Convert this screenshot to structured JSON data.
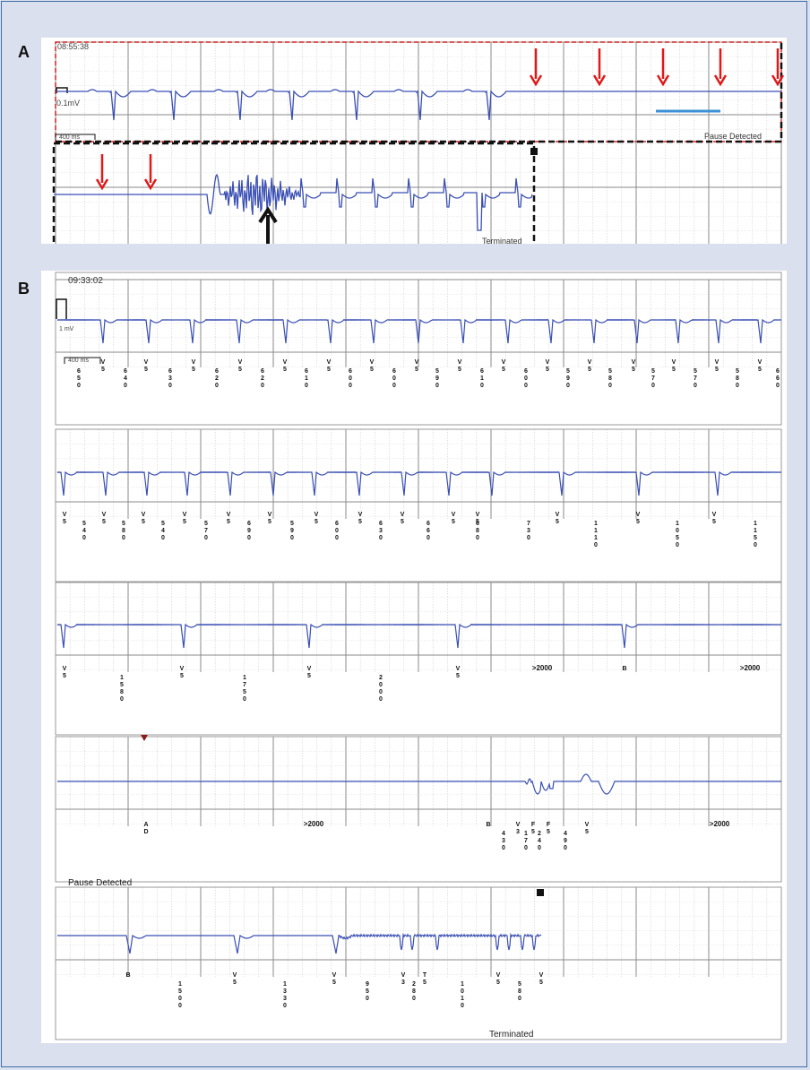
{
  "panel_a": {
    "label": "A",
    "timestamp": "08:55:38",
    "calibration": "0.1mV",
    "scale": "400 ms",
    "pause_text": "Pause Detected",
    "terminated_text": "Terminated",
    "colors": {
      "trace": "#3a4fb4",
      "grid_major": "#7f7f7f",
      "grid_minor": "#c4c4c4",
      "red_box": "#d42020",
      "arrow_red": "#e01818",
      "blue_bar": "#3b8fd6"
    }
  },
  "panel_b": {
    "label": "B",
    "timestamp": "09:33:02",
    "calibration": "1 mV",
    "scale": "400 ms",
    "rows": [
      {
        "markers": [
          {
            "t": "V\n5",
            "x": 115
          },
          {
            "t": "6\n5\n0",
            "x": 88
          },
          {
            "t": "V\n5",
            "x": 163
          },
          {
            "t": "6\n4\n0",
            "x": 140
          },
          {
            "t": "V\n5",
            "x": 216
          },
          {
            "t": "6\n3\n0",
            "x": 190
          },
          {
            "t": "V\n5",
            "x": 268
          },
          {
            "t": "6\n2\n0",
            "x": 242
          },
          {
            "t": "V\n5",
            "x": 318
          },
          {
            "t": "6\n2\n0",
            "x": 293
          },
          {
            "t": "V\n5",
            "x": 367
          },
          {
            "t": "6\n1\n0",
            "x": 342
          },
          {
            "t": "V\n5",
            "x": 415
          },
          {
            "t": "6\n0\n0",
            "x": 391
          },
          {
            "t": "V\n5",
            "x": 465
          },
          {
            "t": "6\n0\n0",
            "x": 440
          },
          {
            "t": "V\n5",
            "x": 513
          },
          {
            "t": "5\n9\n0",
            "x": 488
          },
          {
            "t": "V\n5",
            "x": 562
          },
          {
            "t": "6\n1\n0",
            "x": 538
          },
          {
            "t": "V\n5",
            "x": 611
          },
          {
            "t": "6\n0\n0",
            "x": 587
          },
          {
            "t": "V\n5",
            "x": 658
          },
          {
            "t": "5\n9\n0",
            "x": 634
          },
          {
            "t": "V\n5",
            "x": 707
          },
          {
            "t": "5\n8\n0",
            "x": 681
          },
          {
            "t": "V\n5",
            "x": 752
          },
          {
            "t": "5\n7\n0",
            "x": 729
          },
          {
            "t": "V\n5",
            "x": 800
          },
          {
            "t": "5\n7\n0",
            "x": 776
          },
          {
            "t": "V\n5",
            "x": 848
          },
          {
            "t": "5\n8\n0",
            "x": 823
          },
          {
            "t": "6\n6\n0",
            "x": 868
          }
        ]
      },
      {
        "markers": [
          {
            "t": "V\n5",
            "x": 72
          },
          {
            "t": "V\n5",
            "x": 116
          },
          {
            "t": "5\n4\n0",
            "x": 94
          },
          {
            "t": "V\n5",
            "x": 160
          },
          {
            "t": "5\n8\n0",
            "x": 138
          },
          {
            "t": "V\n5",
            "x": 206
          },
          {
            "t": "5\n4\n0",
            "x": 182
          },
          {
            "t": "V\n5",
            "x": 255
          },
          {
            "t": "5\n7\n0",
            "x": 230
          },
          {
            "t": "V\n5",
            "x": 301
          },
          {
            "t": "6\n9\n0",
            "x": 278
          },
          {
            "t": "V\n5",
            "x": 353
          },
          {
            "t": "5\n9\n0",
            "x": 326
          },
          {
            "t": "V\n5",
            "x": 402
          },
          {
            "t": "6\n0\n0",
            "x": 376
          },
          {
            "t": "V\n5",
            "x": 449
          },
          {
            "t": "6\n3\n0",
            "x": 425
          },
          {
            "t": "V\n5",
            "x": 506
          },
          {
            "t": "6\n6\n0",
            "x": 478
          },
          {
            "t": "V\n5",
            "x": 533
          },
          {
            "t": "6\n8\n0",
            "x": 533
          },
          {
            "t": "V\n5",
            "x": 622
          },
          {
            "t": "7\n3\n0",
            "x": 590
          },
          {
            "t": "1\n1\n1\n0",
            "x": 665
          },
          {
            "t": "V\n5",
            "x": 712
          },
          {
            "t": "1\n0\n5\n0",
            "x": 756
          },
          {
            "t": "V\n5",
            "x": 797
          },
          {
            "t": "1\n1\n5\n0",
            "x": 843
          }
        ]
      },
      {
        "markers": [
          {
            "t": "V\n5",
            "x": 72
          },
          {
            "t": "1\n5\n8\n0",
            "x": 136
          },
          {
            "t": "V\n5",
            "x": 203
          },
          {
            "t": "1\n7\n5\n0",
            "x": 273
          },
          {
            "t": "V\n5",
            "x": 345
          },
          {
            "t": "2\n0\n0\n0",
            "x": 425
          },
          {
            "t": "V\n5",
            "x": 511
          },
          {
            "t": ">2000",
            "x": 605
          },
          {
            "t": "B",
            "x": 697
          },
          {
            "t": ">2000",
            "x": 837
          }
        ]
      },
      {
        "markers": [
          {
            "t": "A\nD",
            "x": 163
          },
          {
            "t": ">2000",
            "x": 350
          },
          {
            "t": "B",
            "x": 545
          },
          {
            "t": "4\n3\n0",
            "x": 562
          },
          {
            "t": "V\n3",
            "x": 578
          },
          {
            "t": "1\n7\n0",
            "x": 587
          },
          {
            "t": "F\n5",
            "x": 595
          },
          {
            "t": "2\n4\n0",
            "x": 602
          },
          {
            "t": "F\n5",
            "x": 612
          },
          {
            "t": "4\n9\n0",
            "x": 631
          },
          {
            "t": "V\n5",
            "x": 655
          },
          {
            "t": ">2000",
            "x": 803
          }
        ]
      },
      {
        "markers": [
          {
            "t": "B",
            "x": 143
          },
          {
            "t": "1\n5\n0\n0",
            "x": 201
          },
          {
            "t": "V\n5",
            "x": 262
          },
          {
            "t": "1\n3\n3\n0",
            "x": 318
          },
          {
            "t": "V\n5",
            "x": 373
          },
          {
            "t": "9\n5\n0",
            "x": 410
          },
          {
            "t": "V\n3",
            "x": 450
          },
          {
            "t": "2\n8\n0",
            "x": 462
          },
          {
            "t": "T\n5",
            "x": 474
          },
          {
            "t": "1\n0\n1\n0",
            "x": 516
          },
          {
            "t": "V\n5",
            "x": 556
          },
          {
            "t": "5\n8\n0",
            "x": 580
          },
          {
            "t": "V\n5",
            "x": 604
          }
        ]
      }
    ],
    "pause_text": "Pause Detected",
    "terminated_text": "Terminated"
  }
}
